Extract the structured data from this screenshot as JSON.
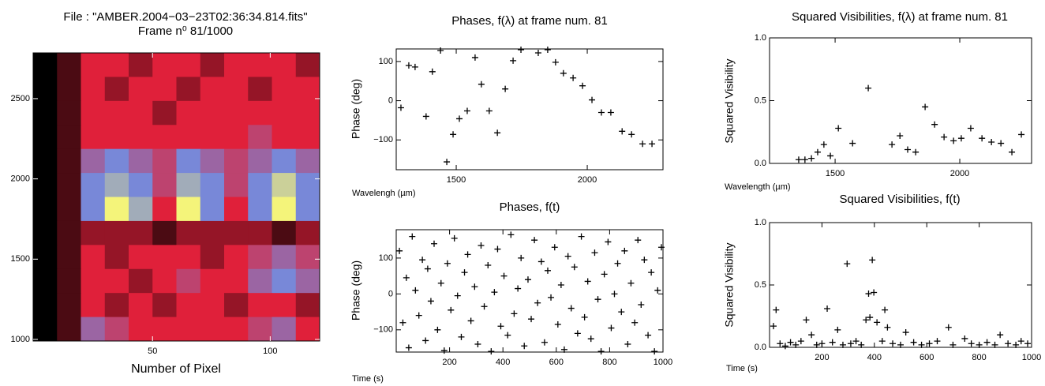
{
  "chart_data": [
    {
      "type": "heatmap",
      "title": "File : \"AMBER.2004−03−23T02:36:34.814.fits\"",
      "subtitle": "Frame n⁰ 81/1000",
      "xlabel": "Number of Pixel",
      "xlim": [
        -0.7,
        121
      ],
      "ylim": [
        990,
        2785
      ],
      "xticks": [
        50,
        100
      ],
      "yticks": [
        1000,
        1500,
        2000,
        2500
      ],
      "zlim": [
        0,
        9
      ],
      "colors": [
        "#000000",
        "#e0203a",
        "#7888d8",
        "#f4f47a"
      ],
      "z": [
        [
          0,
          1,
          3,
          3,
          2,
          3,
          3,
          2,
          3,
          3,
          3,
          2
        ],
        [
          0,
          1,
          3,
          2,
          3,
          3,
          2,
          3,
          3,
          2,
          3,
          3
        ],
        [
          0,
          1,
          3,
          3,
          3,
          2,
          3,
          3,
          3,
          3,
          3,
          3
        ],
        [
          0,
          1,
          3,
          3,
          3,
          3,
          3,
          3,
          3,
          4,
          3,
          3
        ],
        [
          0,
          1,
          5,
          6,
          5,
          4,
          6,
          5,
          4,
          5,
          6,
          5
        ],
        [
          0,
          1,
          6,
          7,
          6,
          4,
          7,
          6,
          4,
          6,
          8,
          6
        ],
        [
          0,
          1,
          6,
          9,
          7,
          3,
          9,
          6,
          3,
          6,
          9,
          6
        ],
        [
          0,
          1,
          2,
          2,
          2,
          1,
          2,
          2,
          2,
          2,
          1,
          2
        ],
        [
          0,
          1,
          3,
          2,
          3,
          3,
          3,
          2,
          3,
          4,
          5,
          4
        ],
        [
          0,
          1,
          3,
          3,
          2,
          3,
          4,
          3,
          3,
          5,
          6,
          5
        ],
        [
          0,
          1,
          3,
          2,
          3,
          2,
          3,
          3,
          2,
          3,
          3,
          2
        ],
        [
          0,
          1,
          5,
          4,
          3,
          3,
          3,
          3,
          3,
          4,
          5,
          3
        ]
      ]
    },
    {
      "type": "scatter",
      "title": "Phases, f(λ) at frame num. 81",
      "xlabel": "Wavelengh (µm)",
      "ylabel": "Phase (deg)",
      "color": "#000000",
      "xlim": [
        1271,
        2289
      ],
      "ylim": [
        -176,
        132
      ],
      "xticks": [
        1500,
        2000
      ],
      "yticks": [
        {
          "value": -100,
          "label": "−100"
        },
        0,
        100
      ],
      "x": [
        1289,
        1319,
        1343,
        1385,
        1409,
        1440,
        1464,
        1488,
        1512,
        1542,
        1572,
        1596,
        1626,
        1657,
        1687,
        1717,
        1747,
        1813,
        1849,
        1879,
        1909,
        1946,
        1982,
        2018,
        2054,
        2090,
        2133,
        2169,
        2211,
        2247
      ],
      "y": [
        -18,
        90,
        86,
        -40,
        74,
        128,
        -156,
        -86,
        -46,
        -26,
        110,
        42,
        -26,
        -82,
        30,
        102,
        130,
        122,
        130,
        98,
        70,
        58,
        38,
        2,
        -30,
        -30,
        -78,
        -86,
        -110,
        -110
      ]
    },
    {
      "type": "scatter",
      "title": "Phases, f(t)",
      "xlabel": "Time (s)",
      "ylabel": "Phase (deg)",
      "color": "#000000",
      "xlim": [
        0,
        1000
      ],
      "ylim": [
        -162,
        179
      ],
      "xticks": [
        200,
        400,
        600,
        800,
        1000
      ],
      "yticks": [
        {
          "value": -100,
          "label": "−100"
        },
        0,
        100
      ],
      "x": [
        12,
        25,
        38,
        47,
        60,
        72,
        85,
        98,
        110,
        118,
        130,
        142,
        155,
        168,
        180,
        192,
        205,
        218,
        230,
        244,
        256,
        268,
        280,
        294,
        306,
        318,
        330,
        344,
        356,
        368,
        380,
        392,
        404,
        418,
        430,
        442,
        456,
        468,
        480,
        494,
        506,
        518,
        530,
        544,
        556,
        568,
        580,
        594,
        606,
        618,
        630,
        644,
        656,
        668,
        680,
        694,
        706,
        718,
        730,
        744,
        756,
        768,
        780,
        794,
        806,
        818,
        830,
        844,
        856,
        868,
        880,
        894,
        906,
        918,
        930,
        944,
        956,
        968,
        980,
        994
      ],
      "y": [
        120,
        -80,
        45,
        -150,
        160,
        10,
        -60,
        95,
        -130,
        70,
        -20,
        140,
        -100,
        30,
        -158,
        85,
        -45,
        155,
        -5,
        -120,
        60,
        110,
        -75,
        20,
        -140,
        135,
        -35,
        80,
        -160,
        5,
        125,
        -90,
        50,
        -115,
        165,
        -55,
        15,
        100,
        -145,
        40,
        -70,
        150,
        -25,
        90,
        -135,
        65,
        -10,
        130,
        -85,
        25,
        -155,
        105,
        -40,
        75,
        -110,
        160,
        -65,
        35,
        -125,
        115,
        -15,
        -160,
        55,
        145,
        -95,
        0,
        85,
        -50,
        120,
        -140,
        30,
        -80,
        150,
        -30,
        95,
        -115,
        60,
        -160,
        10,
        130
      ]
    },
    {
      "type": "scatter",
      "title": "Squared Visibilities, f(λ) at frame num. 81",
      "xlabel": "Wavelength (µm)",
      "ylabel": "Squared Visibility",
      "color": "#000000",
      "xlim": [
        1237,
        2288
      ],
      "ylim": [
        0,
        1
      ],
      "xticks": [
        1500,
        2000
      ],
      "yticks": [
        {
          "value": 0,
          "label": "0.0"
        },
        0.5,
        {
          "value": 1,
          "label": "1.0"
        }
      ],
      "x": [
        1354,
        1379,
        1405,
        1430,
        1455,
        1481,
        1513,
        1570,
        1633,
        1728,
        1760,
        1791,
        1823,
        1861,
        1899,
        1937,
        1975,
        2006,
        2044,
        2089,
        2127,
        2165,
        2209,
        2247
      ],
      "y": [
        0.03,
        0.03,
        0.04,
        0.09,
        0.15,
        0.06,
        0.28,
        0.16,
        0.6,
        0.15,
        0.22,
        0.11,
        0.09,
        0.45,
        0.31,
        0.21,
        0.18,
        0.2,
        0.28,
        0.2,
        0.17,
        0.16,
        0.09,
        0.23
      ]
    },
    {
      "type": "scatter",
      "title": "Squared Visibilities, f(t)",
      "xlabel": "Time (s)",
      "ylabel": "Squared Visibility",
      "color": "#000000",
      "xlim": [
        0,
        1000
      ],
      "ylim": [
        0,
        1
      ],
      "xticks": [
        200,
        400,
        600,
        800,
        1000
      ],
      "yticks": [
        {
          "value": 0,
          "label": "0.0"
        },
        0.5,
        {
          "value": 1,
          "label": "1.0"
        }
      ],
      "x": [
        15,
        25,
        40,
        60,
        80,
        100,
        120,
        140,
        160,
        180,
        200,
        220,
        240,
        260,
        280,
        296,
        310,
        330,
        350,
        368,
        378,
        383,
        392,
        398,
        410,
        430,
        440,
        450,
        470,
        500,
        520,
        550,
        580,
        610,
        640,
        683,
        700,
        745,
        770,
        800,
        830,
        860,
        880,
        910,
        940,
        960,
        985
      ],
      "y": [
        0.17,
        0.3,
        0.03,
        0.01,
        0.04,
        0.02,
        0.05,
        0.22,
        0.1,
        0.02,
        0.03,
        0.31,
        0.04,
        0.14,
        0.02,
        0.67,
        0.03,
        0.05,
        0.02,
        0.22,
        0.43,
        0.24,
        0.7,
        0.44,
        0.2,
        0.05,
        0.3,
        0.16,
        0.03,
        0.02,
        0.12,
        0.04,
        0.02,
        0.03,
        0.05,
        0.16,
        0.02,
        0.07,
        0.03,
        0.02,
        0.04,
        0.02,
        0.1,
        0.03,
        0.02,
        0.05,
        0.03
      ]
    }
  ]
}
